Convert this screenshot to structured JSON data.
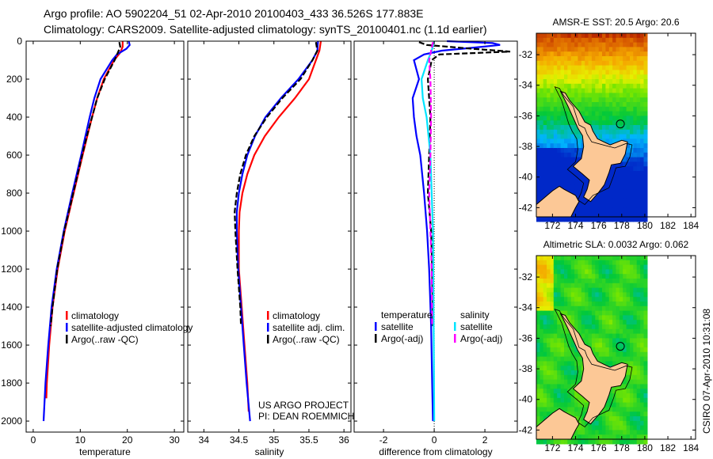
{
  "header": {
    "title_line1": "Argo profile: AO 5902204_51 02-Apr-2010 20100403_433 36.526S 177.883E",
    "title_line2": "Climatology: CARS2009. Satellite-adjusted climatology: synTS_20100401.nc (1.1d earlier)"
  },
  "side_label": "CSIRO 07-Apr-2010 10:31:08",
  "colors": {
    "climatology": "#ff0000",
    "satellite": "#0000ff",
    "argo": "#000000",
    "salinity_satellite": "#00e5ff",
    "salinity_argo": "#ff00ff"
  },
  "chart_data": [
    {
      "type": "line",
      "id": "temperature",
      "xlabel": "temperature",
      "ylabel": "",
      "xlim": [
        -1.5,
        32
      ],
      "ylim": [
        2058,
        0
      ],
      "xticks": [
        0,
        10,
        20,
        30
      ],
      "yticks": [
        0,
        200,
        400,
        600,
        800,
        1000,
        1200,
        1400,
        1600,
        1800,
        2000
      ],
      "legend": [
        "climatology",
        "satellite-adjusted climatology",
        "Argo(..raw -QC)"
      ],
      "legend_position": "lower-right",
      "series": [
        {
          "name": "climatology",
          "color": "#ff0000",
          "dash": false,
          "depth": [
            0,
            30,
            60,
            100,
            200,
            300,
            400,
            500,
            600,
            800,
            1000,
            1200,
            1400,
            1600,
            1800,
            1880
          ],
          "values": [
            19,
            19,
            18.5,
            17.2,
            15,
            13.6,
            12.5,
            11.5,
            10.5,
            8.6,
            6.7,
            5.2,
            4.1,
            3.4,
            2.9,
            2.8
          ]
        },
        {
          "name": "satellite-adjusted climatology",
          "color": "#0000ff",
          "dash": false,
          "depth": [
            0,
            20,
            40,
            70,
            100,
            200,
            300,
            400,
            500,
            600,
            800,
            1000,
            1200,
            1400,
            1600,
            1800,
            2000
          ],
          "values": [
            20.3,
            20.5,
            19.8,
            17.8,
            16.8,
            14.3,
            13,
            12,
            11.1,
            10.2,
            8.3,
            6.5,
            5,
            3.9,
            3.2,
            2.6,
            2.2
          ]
        },
        {
          "name": "Argo(..raw -QC)",
          "color": "#000000",
          "dash": true,
          "depth": [
            5,
            30,
            60,
            100,
            200,
            300,
            400,
            500,
            600,
            800,
            1000,
            1200,
            1400,
            1500
          ],
          "values": [
            18.3,
            18.5,
            18,
            17.3,
            15.2,
            13.6,
            12.5,
            11.4,
            10.4,
            8.5,
            6.6,
            5.1,
            4.1,
            3.7
          ]
        }
      ]
    },
    {
      "type": "line",
      "id": "salinity",
      "xlabel": "salinity",
      "xlim": [
        33.77,
        36.1
      ],
      "ylim": [
        2058,
        0
      ],
      "xticks": [
        34,
        34.5,
        35,
        35.5,
        36
      ],
      "xtick_labels": [
        "34",
        "34.5",
        "35",
        "35.5",
        "36"
      ],
      "legend": [
        "climatology",
        "satellite adj. clim.",
        "Argo(..raw -QC)"
      ],
      "legend_position": "lower-right",
      "annotation": [
        "US ARGO PROJECT",
        "PI: DEAN ROEMMICH"
      ],
      "series": [
        {
          "name": "climatology",
          "color": "#ff0000",
          "dash": false,
          "depth": [
            0,
            50,
            100,
            200,
            300,
            400,
            500,
            600,
            700,
            800,
            900,
            1000,
            1200,
            1400,
            1600,
            1800,
            1950
          ],
          "values": [
            35.67,
            35.65,
            35.6,
            35.5,
            35.3,
            35.07,
            34.87,
            34.72,
            34.62,
            34.55,
            34.51,
            34.5,
            34.5,
            34.54,
            34.58,
            34.62,
            34.64
          ]
        },
        {
          "name": "satellite adj. clim.",
          "color": "#0000ff",
          "dash": false,
          "depth": [
            0,
            50,
            100,
            200,
            300,
            400,
            500,
            600,
            700,
            800,
            900,
            1000,
            1200,
            1400,
            1600,
            1800,
            2000
          ],
          "values": [
            35.63,
            35.62,
            35.55,
            35.35,
            35.1,
            34.88,
            34.73,
            34.62,
            34.55,
            34.5,
            34.47,
            34.47,
            34.49,
            34.53,
            34.57,
            34.61,
            34.66
          ]
        },
        {
          "name": "Argo(..raw -QC)",
          "color": "#000000",
          "dash": true,
          "depth": [
            5,
            50,
            100,
            200,
            300,
            400,
            500,
            600,
            700,
            800,
            900,
            1000,
            1200,
            1400,
            1500
          ],
          "values": [
            35.6,
            35.62,
            35.55,
            35.38,
            35.12,
            34.9,
            34.72,
            34.6,
            34.52,
            34.47,
            34.44,
            34.45,
            34.48,
            34.52,
            34.53
          ]
        }
      ]
    },
    {
      "type": "line",
      "id": "difference",
      "xlabel": "difference from climatology",
      "xlim": [
        -3.16,
        3.28
      ],
      "ylim": [
        2058,
        0
      ],
      "xticks": [
        -2,
        0,
        2
      ],
      "legend_groups": [
        {
          "heading": "temperature",
          "items": [
            "satellite",
            "Argo(-adj)"
          ]
        },
        {
          "heading": "salinity",
          "items": [
            "satellite",
            "Argo(-adj)"
          ]
        }
      ],
      "series": [
        {
          "name": "temperature satellite",
          "color": "#0000ff",
          "dash": false,
          "depth": [
            0,
            10,
            20,
            35,
            50,
            70,
            100,
            150,
            200,
            300,
            400,
            500,
            600,
            800,
            1000,
            1200,
            1500,
            1800,
            2000
          ],
          "values": [
            0.5,
            2.3,
            2.6,
            1.5,
            0.3,
            -0.4,
            -0.8,
            -0.7,
            -0.6,
            -0.85,
            -0.8,
            -0.7,
            -0.55,
            -0.4,
            -0.28,
            -0.2,
            -0.12,
            -0.08,
            -0.05
          ]
        },
        {
          "name": "temperature Argo(-adj)",
          "color": "#000000",
          "dash": true,
          "depth": [
            5,
            20,
            40,
            55,
            70,
            100,
            200,
            300,
            400,
            600,
            800,
            1000,
            1200,
            1500
          ],
          "values": [
            -0.6,
            -0.3,
            1.5,
            3.0,
            0.2,
            -0.1,
            -0.25,
            -0.2,
            -0.15,
            -0.2,
            -0.25,
            -0.12,
            -0.08,
            -0.05
          ]
        },
        {
          "name": "salinity satellite",
          "color": "#00e5ff",
          "dash": false,
          "depth": [
            0,
            50,
            100,
            200,
            300,
            400,
            600,
            800,
            1000,
            1500,
            2000
          ],
          "values": [
            0,
            -0.1,
            -0.25,
            -0.5,
            -0.45,
            -0.3,
            -0.15,
            -0.1,
            -0.05,
            -0.02,
            0
          ]
        },
        {
          "name": "salinity Argo(-adj)",
          "color": "#ff00ff",
          "dash": true,
          "depth": [
            5,
            100,
            200,
            400,
            600,
            800,
            1000,
            1200,
            1500
          ],
          "values": [
            -0.05,
            -0.2,
            -0.15,
            -0.12,
            -0.15,
            -0.2,
            -0.15,
            -0.1,
            -0.08
          ]
        }
      ]
    },
    {
      "type": "heatmap",
      "id": "sst_map",
      "title": "AMSR-E SST: 20.5 Argo: 20.6",
      "xlim": [
        170.6,
        184.4
      ],
      "ylim": [
        -42.6,
        -30.6
      ],
      "xticks": [
        172,
        174,
        176,
        178,
        180,
        182,
        184
      ],
      "yticks": [
        -32,
        -34,
        -36,
        -38,
        -40,
        -42
      ],
      "argo_position": {
        "lon": 177.883,
        "lat": -36.526
      }
    },
    {
      "type": "heatmap",
      "id": "sla_map",
      "title": "Altimetric SLA: 0.0032 Argo: 0.062",
      "xlim": [
        170.6,
        184.4
      ],
      "ylim": [
        -42.6,
        -30.6
      ],
      "xticks": [
        172,
        174,
        176,
        178,
        180,
        182,
        184
      ],
      "yticks": [
        -32,
        -34,
        -36,
        -38,
        -40,
        -42
      ],
      "argo_position": {
        "lon": 177.883,
        "lat": -36.526
      }
    }
  ]
}
